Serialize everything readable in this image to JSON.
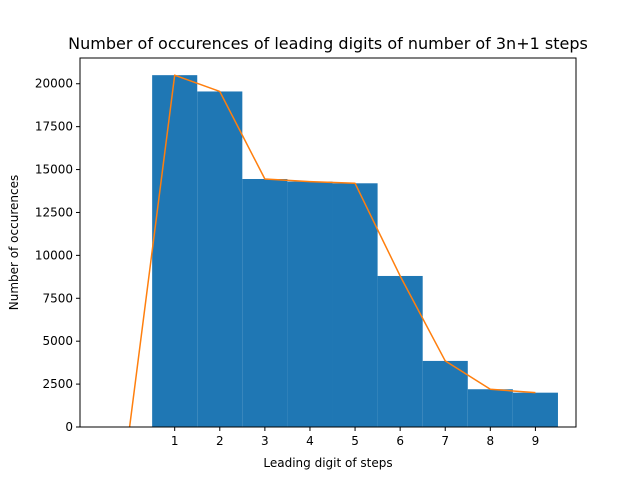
{
  "chart_data": {
    "type": "bar",
    "title": "Number of occurences of leading digits of number of 3n+1 steps",
    "xlabel": "Leading digit of steps",
    "ylabel": "Number of occurences",
    "xlim": [
      -1.1,
      9.9
    ],
    "ylim": [
      0,
      21500
    ],
    "xticks": [
      1,
      2,
      3,
      4,
      5,
      6,
      7,
      8,
      9
    ],
    "yticks": [
      0,
      2500,
      5000,
      7500,
      10000,
      12500,
      15000,
      17500,
      20000
    ],
    "grid": false,
    "bars": {
      "color": "#1f77b4",
      "width": 1,
      "x": [
        1,
        2,
        3,
        4,
        5,
        6,
        7,
        8,
        9
      ],
      "values": [
        20500,
        19550,
        14450,
        14300,
        14200,
        8800,
        3850,
        2200,
        2000
      ]
    },
    "line": {
      "color": "#ff7f0e",
      "x": [
        0,
        1,
        2,
        3,
        4,
        5,
        6,
        7,
        8,
        9
      ],
      "values": [
        0,
        20500,
        19550,
        14450,
        14300,
        14200,
        8800,
        3850,
        2200,
        2000
      ]
    }
  }
}
